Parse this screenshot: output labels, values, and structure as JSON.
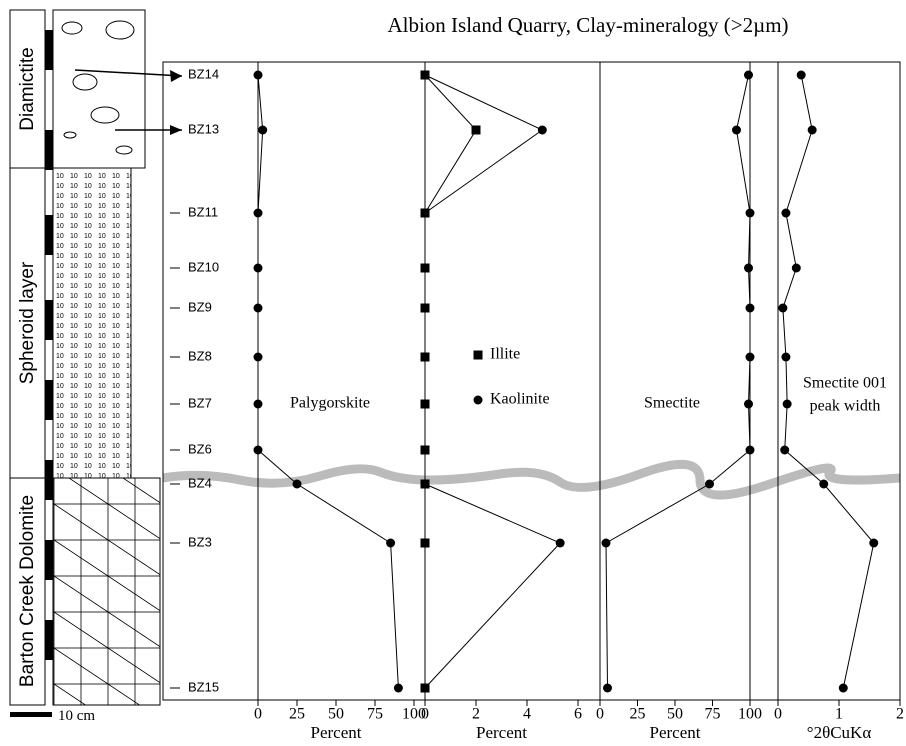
{
  "title": "Albion Island Quarry,  Clay-mineralogy (>2µm)",
  "column": {
    "units": [
      "Diamictite",
      "Spheroid layer",
      "Barton Creek Dolomite"
    ],
    "scale": "10 cm"
  },
  "chart_data": [
    {
      "type": "line",
      "categories": [
        "BZ14",
        "BZ13",
        "BZ11",
        "BZ10",
        "BZ9",
        "BZ8",
        "BZ7",
        "BZ6",
        "BZ4",
        "BZ3",
        "BZ15"
      ],
      "label": [
        "Palygorskite"
      ],
      "xlabel": "Percent",
      "xlim": [
        0,
        100
      ],
      "xticks": [
        0,
        25,
        50,
        75,
        100
      ],
      "series": [
        {
          "marker": "circle",
          "color": "#000000",
          "values": [
            0,
            3,
            0,
            0,
            0,
            0,
            0,
            0,
            25,
            85,
            90
          ]
        }
      ]
    },
    {
      "type": "line",
      "label": [],
      "xlabel": "Percent",
      "xlim": [
        0,
        6
      ],
      "xticks": [
        0,
        2,
        4,
        6
      ],
      "series": [
        {
          "name": "Illite",
          "marker": "square",
          "color": "#000000",
          "values": [
            0,
            2,
            0,
            0,
            0,
            0,
            0,
            0,
            0,
            0,
            0
          ]
        },
        {
          "name": "Kaolinite",
          "marker": "circle",
          "color": "#000000",
          "values": [
            0,
            4.6,
            0,
            0,
            0,
            0,
            0,
            0,
            0,
            5.3,
            0
          ]
        }
      ]
    },
    {
      "type": "line",
      "label": [
        "Smectite"
      ],
      "xlabel": "Percent",
      "xlim": [
        0,
        100
      ],
      "xticks": [
        0,
        25,
        50,
        75,
        100
      ],
      "series": [
        {
          "marker": "circle",
          "color": "#000000",
          "values": [
            99,
            91,
            100,
            99,
            100,
            100,
            99,
            100,
            73,
            4,
            5
          ]
        }
      ]
    },
    {
      "type": "line",
      "label": [
        "Smectite 001",
        "peak width"
      ],
      "xlabel": "°2θCuKα",
      "xlim": [
        0,
        2
      ],
      "xticks": [
        0,
        1,
        2
      ],
      "series": [
        {
          "marker": "circle",
          "color": "#000000",
          "values": [
            0.38,
            0.56,
            0.13,
            0.3,
            0.08,
            0.13,
            0.15,
            0.11,
            0.75,
            1.57,
            1.07
          ]
        }
      ]
    }
  ]
}
